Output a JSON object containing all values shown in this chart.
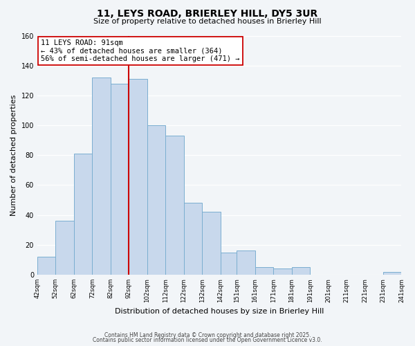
{
  "title1": "11, LEYS ROAD, BRIERLEY HILL, DY5 3UR",
  "title2": "Size of property relative to detached houses in Brierley Hill",
  "xlabel": "Distribution of detached houses by size in Brierley Hill",
  "ylabel": "Number of detached properties",
  "bar_color": "#c8d8ec",
  "bar_edge_color": "#7aaed0",
  "bins_left": [
    42,
    52,
    62,
    72,
    82,
    92,
    102,
    112,
    122,
    132,
    142,
    151,
    161,
    171,
    181,
    191,
    201,
    211,
    221,
    231
  ],
  "bin_width": 10,
  "values": [
    12,
    36,
    81,
    132,
    128,
    131,
    100,
    93,
    48,
    42,
    15,
    16,
    5,
    4,
    5,
    0,
    0,
    0,
    0,
    2
  ],
  "tick_labels": [
    "42sqm",
    "52sqm",
    "62sqm",
    "72sqm",
    "82sqm",
    "92sqm",
    "102sqm",
    "112sqm",
    "122sqm",
    "132sqm",
    "142sqm",
    "151sqm",
    "161sqm",
    "171sqm",
    "181sqm",
    "191sqm",
    "201sqm",
    "211sqm",
    "221sqm",
    "231sqm",
    "241sqm"
  ],
  "vline_x": 92,
  "vline_color": "#cc0000",
  "annotation_line1": "11 LEYS ROAD: 91sqm",
  "annotation_line2": "← 43% of detached houses are smaller (364)",
  "annotation_line3": "56% of semi-detached houses are larger (471) →",
  "annotation_box_color": "#ffffff",
  "annotation_box_edge": "#cc0000",
  "ylim": [
    0,
    160
  ],
  "yticks": [
    0,
    20,
    40,
    60,
    80,
    100,
    120,
    140,
    160
  ],
  "footer1": "Contains HM Land Registry data © Crown copyright and database right 2025.",
  "footer2": "Contains public sector information licensed under the Open Government Licence v3.0.",
  "bg_color": "#f2f5f8",
  "grid_color": "#ffffff"
}
